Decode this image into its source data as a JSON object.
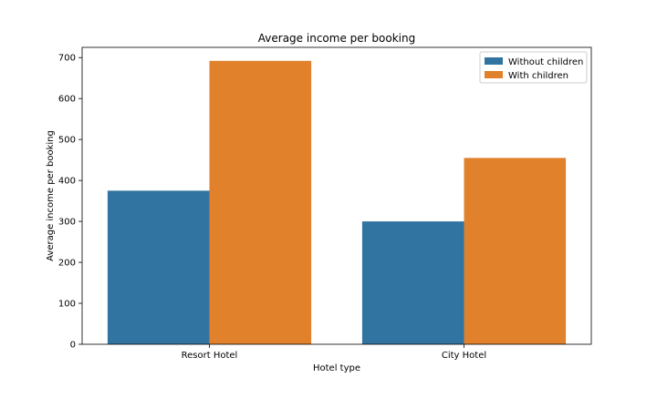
{
  "chart_data": {
    "type": "bar",
    "title": "Average income per booking",
    "xlabel": "Hotel type",
    "ylabel": "Average income per booking",
    "categories": [
      "Resort Hotel",
      "City Hotel"
    ],
    "series": [
      {
        "name": "Without children",
        "color": "#3274a1",
        "values": [
          375,
          300
        ]
      },
      {
        "name": "With children",
        "color": "#e1812c",
        "values": [
          692,
          455
        ]
      }
    ],
    "ylim": [
      0,
      725
    ],
    "yticks": [
      0,
      100,
      200,
      300,
      400,
      500,
      600,
      700
    ],
    "grid": false,
    "legend": "top-right"
  }
}
